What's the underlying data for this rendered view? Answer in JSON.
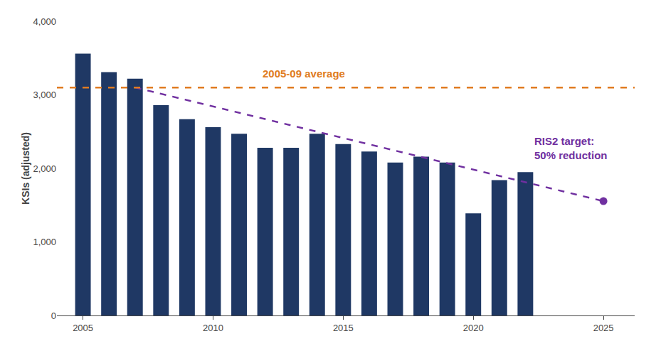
{
  "chart_data": {
    "type": "bar",
    "x": [
      2005,
      2006,
      2007,
      2008,
      2009,
      2010,
      2011,
      2012,
      2013,
      2014,
      2015,
      2016,
      2017,
      2018,
      2019,
      2020,
      2021,
      2022
    ],
    "values": [
      3560,
      3310,
      3220,
      2860,
      2670,
      2560,
      2470,
      2280,
      2280,
      2470,
      2330,
      2230,
      2080,
      2160,
      2080,
      1390,
      1840,
      1950
    ],
    "color": "#1f3864",
    "ylabel": "KSIs (adjusted)",
    "ylim": [
      0,
      4000
    ],
    "yticks": [
      0,
      {
        "value": 1000,
        "label": "1,000"
      },
      {
        "value": 2000,
        "label": "2,000"
      },
      {
        "value": 3000,
        "label": "3,000"
      },
      {
        "value": 4000,
        "label": "4,000"
      }
    ],
    "xlim": [
      2004.0,
      2026.2
    ],
    "xticks": [
      2005,
      2010,
      2015,
      2020,
      2025
    ],
    "grid": false,
    "reference_line": {
      "y": 3100,
      "color": "#e07b20",
      "line_style": "dashed"
    },
    "target_line": {
      "x": [
        2007,
        2025
      ],
      "y": [
        3100,
        1555
      ],
      "color": "#7030a0",
      "line_style": "dashed",
      "marker": "circle"
    },
    "annotations": [
      {
        "text": "2005-09 average",
        "x": 2013.5,
        "y": 3190,
        "color": "#e07b20"
      },
      {
        "text": "RIS2 target:\n50% reduction",
        "x": 2022.3,
        "y": 2280,
        "color": "#7030a0"
      }
    ]
  }
}
